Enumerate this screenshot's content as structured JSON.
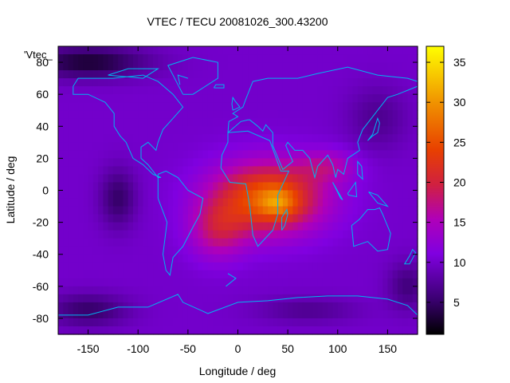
{
  "chart_data": {
    "type": "heatmap",
    "title": "VTEC / TECU 20081026_300.43200",
    "xlabel": "Longitude / deg",
    "ylabel": "Latitude / deg",
    "series_key": "'Vtec_",
    "xlim": [
      -180,
      180
    ],
    "ylim": [
      -90,
      90
    ],
    "xticks": [
      -150,
      -100,
      -50,
      0,
      50,
      100,
      150
    ],
    "yticks": [
      -80,
      -60,
      -40,
      -20,
      0,
      20,
      40,
      60,
      80
    ],
    "colorbar": {
      "min": 1,
      "max": 37,
      "ticks": [
        5,
        10,
        15,
        20,
        25,
        30,
        35
      ]
    },
    "background_level": 10,
    "blobs": [
      {
        "lon": 30,
        "lat": -5,
        "slon": 55,
        "slat": 22,
        "amp": 16
      },
      {
        "lon": -20,
        "lat": -25,
        "slon": 28,
        "slat": 18,
        "amp": 7
      },
      {
        "lon": 40,
        "lat": -8,
        "slon": 18,
        "slat": 9,
        "amp": 6
      },
      {
        "lon": 90,
        "lat": 15,
        "slon": 30,
        "slat": 10,
        "amp": 5
      },
      {
        "lon": -150,
        "lat": 80,
        "slon": 60,
        "slat": 10,
        "amp": -7
      },
      {
        "lon": -120,
        "lat": -5,
        "slon": 18,
        "slat": 18,
        "amp": -5
      },
      {
        "lon": -150,
        "lat": -75,
        "slon": 40,
        "slat": 10,
        "amp": -5
      },
      {
        "lon": 140,
        "lat": 45,
        "slon": 30,
        "slat": 20,
        "amp": -3
      },
      {
        "lon": 170,
        "lat": -60,
        "slon": 20,
        "slat": 15,
        "amp": -4
      },
      {
        "lon": 70,
        "lat": -75,
        "slon": 50,
        "slat": 8,
        "amp": -3
      }
    ],
    "colormap": [
      {
        "v": 0.0,
        "c": "#000000"
      },
      {
        "v": 0.12,
        "c": "#3a0070"
      },
      {
        "v": 0.28,
        "c": "#8000e0"
      },
      {
        "v": 0.4,
        "c": "#b000b8"
      },
      {
        "v": 0.52,
        "c": "#d02040"
      },
      {
        "v": 0.64,
        "c": "#e84000"
      },
      {
        "v": 0.8,
        "c": "#f09000"
      },
      {
        "v": 1.0,
        "c": "#ffff00"
      }
    ],
    "coastline_color": "#00b4f0"
  }
}
